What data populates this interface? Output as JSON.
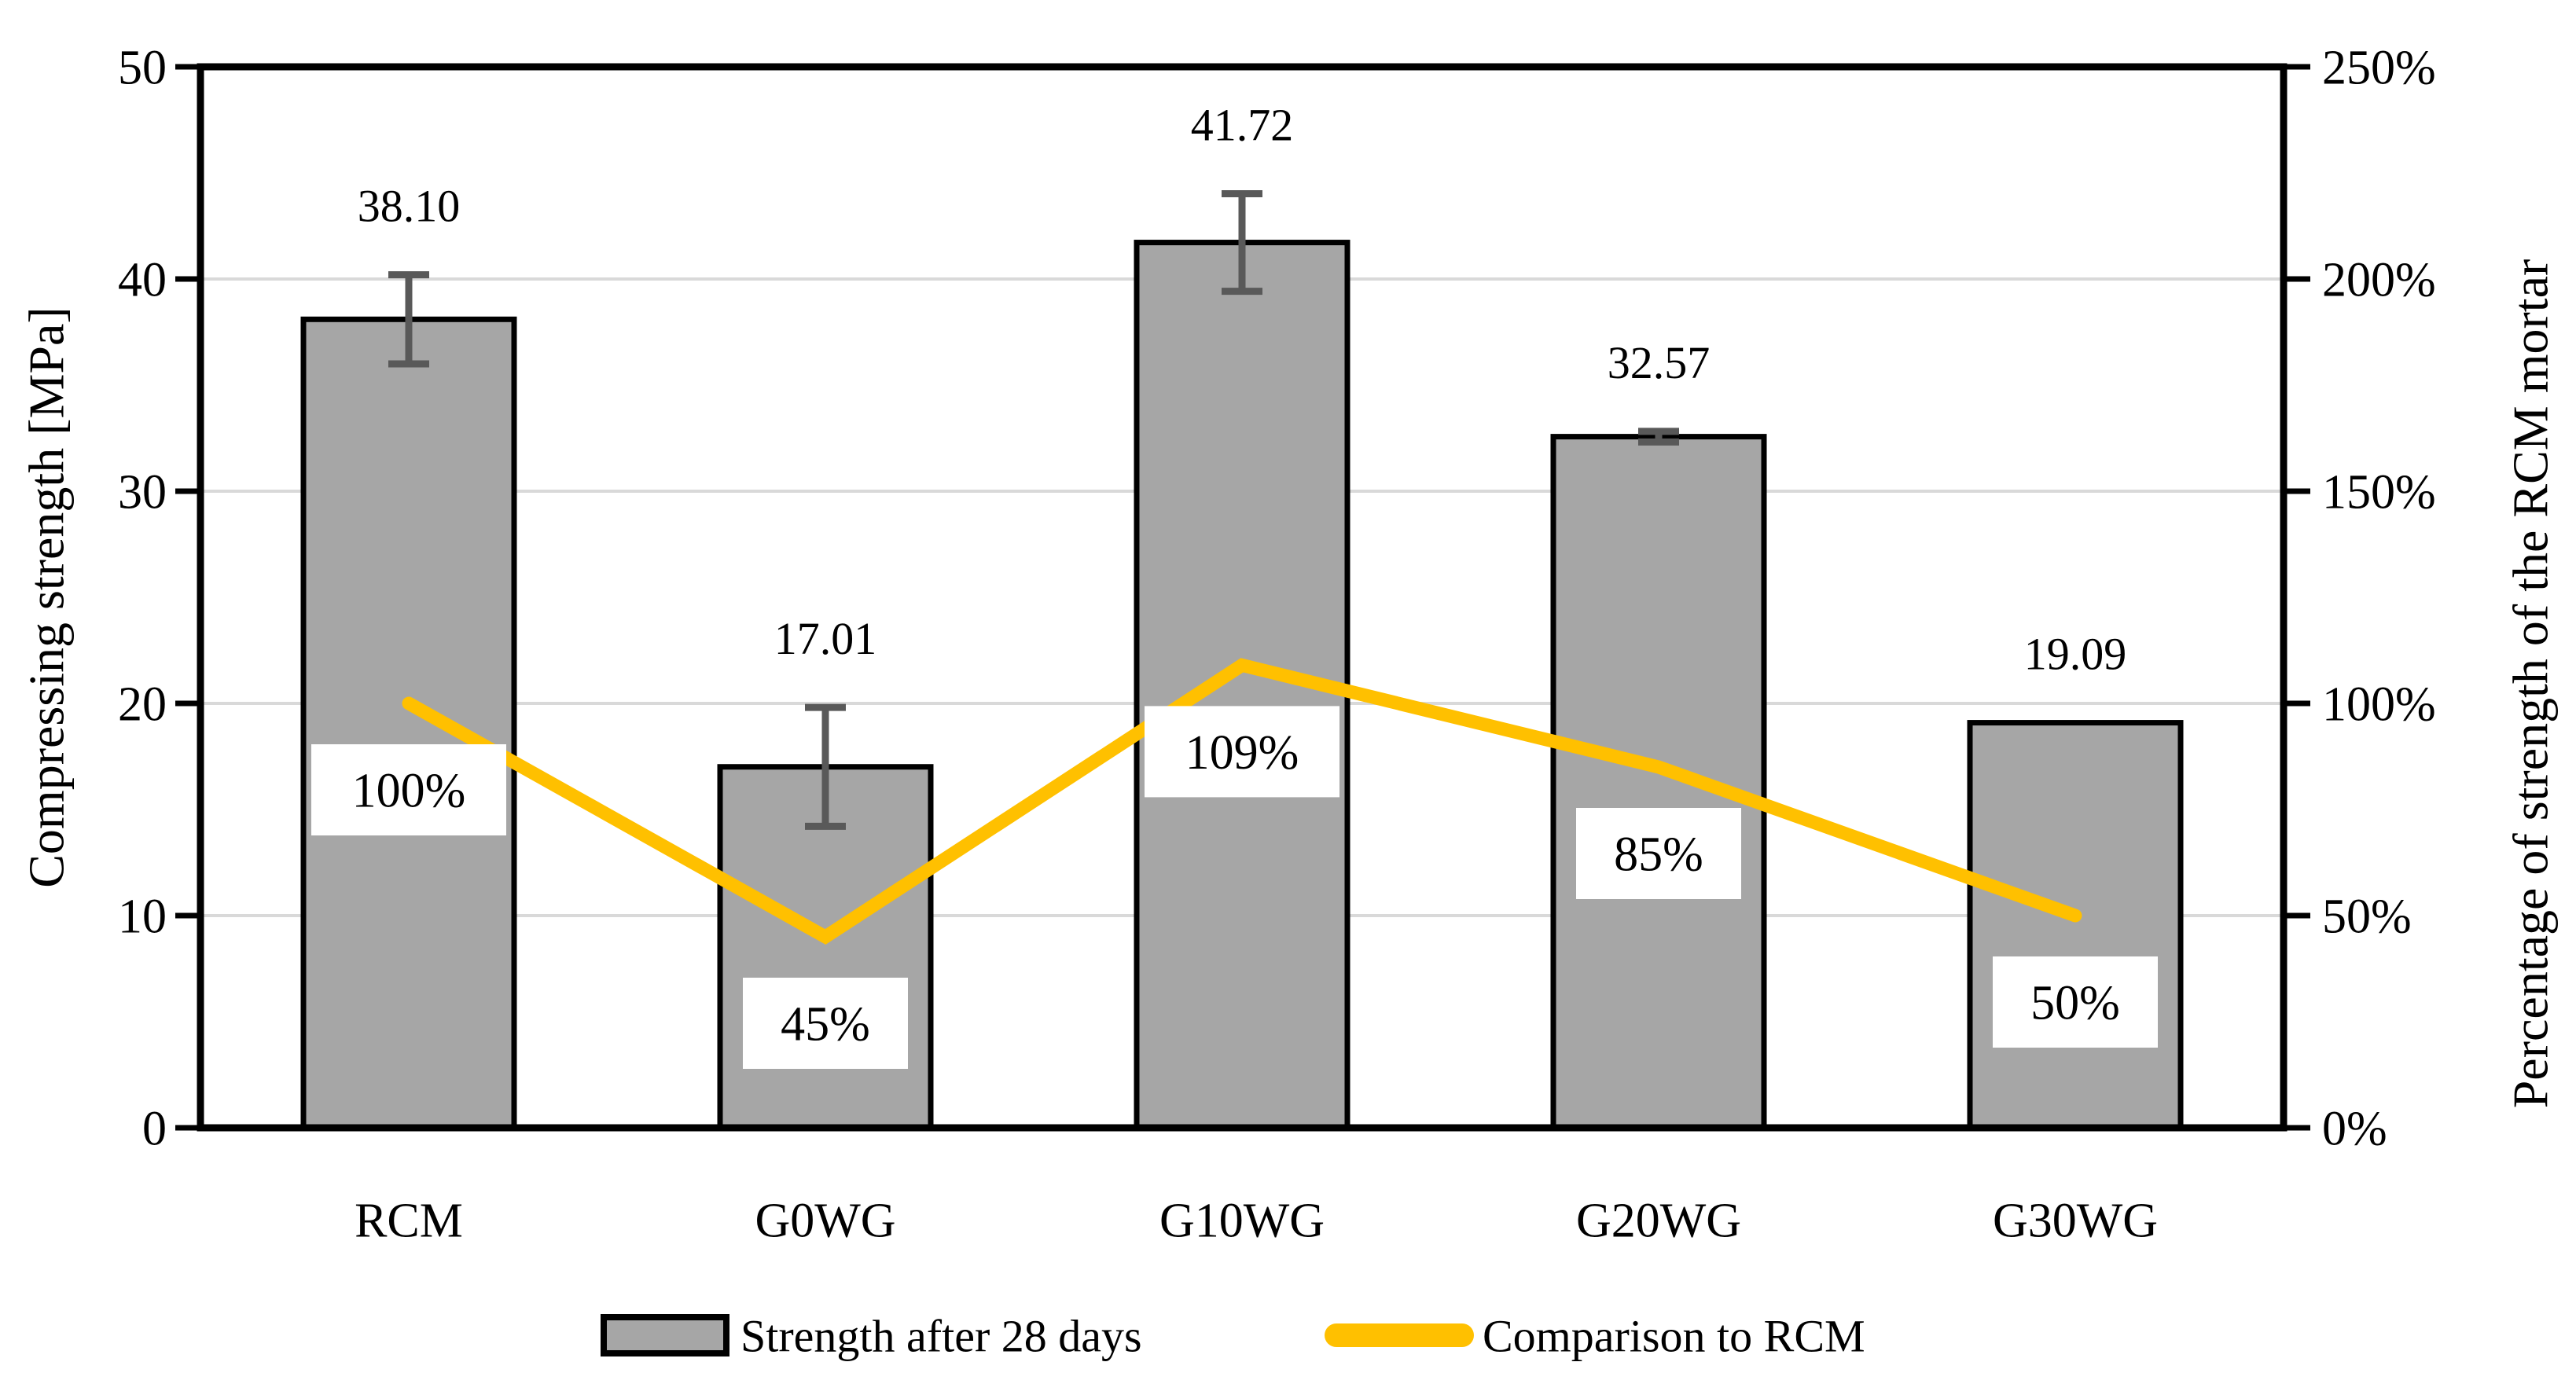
{
  "chart_data": {
    "type": "bar",
    "title": "",
    "categories": [
      "RCM",
      "G0WG",
      "G10WG",
      "G20WG",
      "G30WG"
    ],
    "series": [
      {
        "name": "Strength after 28 days",
        "chart_type": "bar",
        "axis": "left",
        "values": [
          38.1,
          17.01,
          41.72,
          32.57,
          19.09
        ],
        "data_labels": [
          "38.10",
          "17.01",
          "41.72",
          "32.57",
          "19.09"
        ],
        "error_bars": [
          2.1,
          2.8,
          2.3,
          0.25,
          0
        ]
      },
      {
        "name": "Comparison to RCM",
        "chart_type": "line",
        "axis": "right",
        "values": [
          100,
          45,
          109,
          85,
          50
        ],
        "data_labels": [
          "100%",
          "45%",
          "109%",
          "85%",
          "50%"
        ]
      }
    ],
    "left_axis": {
      "title": "Compressing strength [MPa]",
      "min": 0,
      "max": 50,
      "tick_values": [
        0,
        10,
        20,
        30,
        40,
        50
      ],
      "tick_labels": [
        "0",
        "10",
        "20",
        "30",
        "40",
        "50"
      ]
    },
    "right_axis": {
      "title": "Percentage of strength of the RCM mortar",
      "min": 0,
      "max": 250,
      "tick_values": [
        0,
        50,
        100,
        150,
        200,
        250
      ],
      "tick_labels": [
        "0%",
        "50%",
        "100%",
        "150%",
        "200%",
        "250%"
      ]
    },
    "grid": true,
    "legend_position": "bottom",
    "colors": {
      "bar_fill": "#A6A6A6",
      "bar_stroke": "#000000",
      "error_bar": "#595959",
      "line": "#FFC000",
      "gridline": "#D9D9D9",
      "axis": "#000000",
      "label_box_fill": "#FFFFFF",
      "text": "#000000"
    }
  }
}
